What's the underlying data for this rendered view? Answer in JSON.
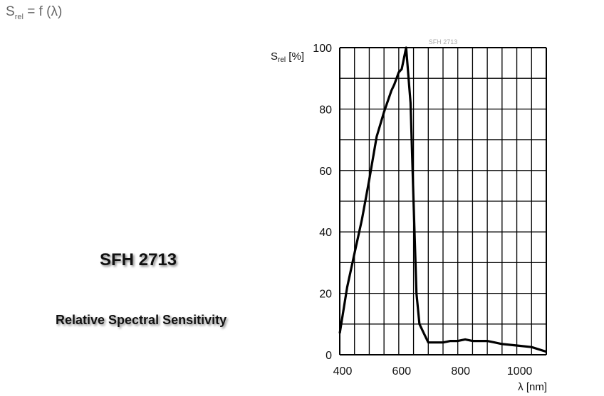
{
  "header": {
    "formula_main": "S",
    "formula_sub": "rel",
    "formula_rest": " = f (λ)"
  },
  "product": "SFH 2713",
  "description": "Relative Spectral Sensitivity",
  "chart_data": {
    "type": "line",
    "title": "SFH 2713",
    "ylabel_main": "S",
    "ylabel_sub": "rel",
    "ylabel_unit": " [%]",
    "xlabel": "λ [nm]",
    "xlim": [
      400,
      1100
    ],
    "ylim": [
      0,
      100
    ],
    "xticks": [
      400,
      600,
      800,
      1000
    ],
    "yticks": [
      0,
      20,
      40,
      60,
      80,
      100
    ],
    "grid": true,
    "line_color": "#000000",
    "x": [
      400,
      425,
      450,
      475,
      500,
      525,
      550,
      575,
      585,
      600,
      610,
      625,
      640,
      650,
      660,
      670,
      690,
      700,
      725,
      750,
      775,
      800,
      825,
      850,
      875,
      900,
      925,
      950,
      1000,
      1050,
      1100
    ],
    "y": [
      7,
      22,
      33,
      44,
      57,
      71,
      79,
      86,
      88,
      92,
      93,
      100,
      82,
      50,
      20,
      10,
      6,
      4,
      4,
      4,
      4.5,
      4.5,
      5,
      4.5,
      4.5,
      4.5,
      4,
      3.5,
      3,
      2.5,
      1
    ]
  }
}
